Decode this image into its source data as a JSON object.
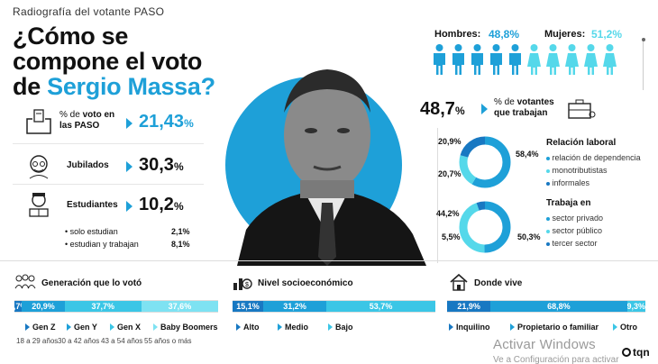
{
  "header": {
    "kicker": "Radiografía del votante PASO",
    "title_line1": "¿Cómo se",
    "title_line2": "compone el voto",
    "title_line3_prefix": "de ",
    "title_line3_name": "Sergio Massa?"
  },
  "left_stats": {
    "voto": {
      "label_prefix": "% de ",
      "label_bold": "voto",
      "label_suffix": " en",
      "label_line2": "las PASO",
      "value_int": "21,43",
      "value_unit": "%"
    },
    "jubilados": {
      "label": "Jubilados",
      "value_int": "30,3",
      "value_unit": "%"
    },
    "estudiantes": {
      "label": "Estudiantes",
      "value_int": "10,2",
      "value_unit": "%",
      "sub": [
        {
          "label": "solo estudian",
          "value": "2,1%"
        },
        {
          "label": "estudian y trabajan",
          "value": "8,1%"
        }
      ]
    }
  },
  "gender": {
    "hombres_label": "Hombres:",
    "hombres_value": "48,8%",
    "mujeres_label": "Mujeres:",
    "mujeres_value": "51,2%"
  },
  "work": {
    "value_int": "48,7",
    "value_unit": "%",
    "label_prefix": "% de ",
    "label_bold": "votantes",
    "label_line2": "que trabajan",
    "relacion": {
      "title": "Relación laboral",
      "legend": [
        "relación de dependencia",
        "monotributistas",
        "informales"
      ],
      "labels": {
        "left_top": "20,9%",
        "left_bottom": "20,7%",
        "right": "58,4%"
      }
    },
    "trabaja_en": {
      "title": "Trabaja en",
      "legend": [
        "sector privado",
        "sector público",
        "tercer sector"
      ],
      "labels": {
        "left_top": "44,2%",
        "left_bottom": "5,5%",
        "right": "50,3%"
      }
    }
  },
  "bottom": {
    "generacion": {
      "title": "Generación que lo votó",
      "segments": [
        {
          "label": "3,7%",
          "value": 3.7,
          "color": "#1878c2"
        },
        {
          "label": "20,9%",
          "value": 20.9,
          "color": "#1ea0d8"
        },
        {
          "label": "37,7%",
          "value": 37.7,
          "color": "#3bc6e6"
        },
        {
          "label": "37,6%",
          "value": 37.6,
          "color": "#7ee2f2"
        }
      ],
      "legend": [
        {
          "name": "Gen Z",
          "sub": "18 a 29 años",
          "color": "#1878c2"
        },
        {
          "name": "Gen Y",
          "sub": "30 a 42 años",
          "color": "#1ea0d8"
        },
        {
          "name": "Gen X",
          "sub": "43 a 54 años",
          "color": "#3bc6e6"
        },
        {
          "name": "Baby Boomers",
          "sub": "55 años o más",
          "color": "#7ee2f2"
        }
      ]
    },
    "nivel": {
      "title": "Nivel socioeconómico",
      "segments": [
        {
          "label": "15,1%",
          "value": 15.1,
          "color": "#1878c2"
        },
        {
          "label": "31,2%",
          "value": 31.2,
          "color": "#1ea0d8"
        },
        {
          "label": "53,7%",
          "value": 53.7,
          "color": "#3bc6e6"
        }
      ],
      "legend": [
        {
          "name": "Alto",
          "color": "#1878c2"
        },
        {
          "name": "Medio",
          "color": "#1ea0d8"
        },
        {
          "name": "Bajo",
          "color": "#3bc6e6"
        }
      ]
    },
    "vive": {
      "title": "Donde vive",
      "segments": [
        {
          "label": "21,9%",
          "value": 21.9,
          "color": "#1878c2"
        },
        {
          "label": "68,8%",
          "value": 68.8,
          "color": "#1ea0d8"
        },
        {
          "label": "9,3%",
          "value": 9.3,
          "color": "#3bc6e6"
        }
      ],
      "legend": [
        {
          "name": "Inquilino",
          "color": "#1878c2"
        },
        {
          "name": "Propietario o familiar",
          "color": "#1ea0d8"
        },
        {
          "name": "Otro",
          "color": "#3bc6e6"
        }
      ]
    }
  },
  "watermark": {
    "line1": "Activar Windows",
    "line2": "Ve a Configuración para activar"
  },
  "brand": "tqn",
  "chart_data": [
    {
      "type": "pie",
      "title": "Relación laboral",
      "categories": [
        "relación de dependencia",
        "monotributistas",
        "informales"
      ],
      "values": [
        58.4,
        20.9,
        20.7
      ]
    },
    {
      "type": "pie",
      "title": "Trabaja en",
      "categories": [
        "sector privado",
        "sector público",
        "tercer sector"
      ],
      "values": [
        50.3,
        44.2,
        5.5
      ]
    },
    {
      "type": "bar",
      "title": "Generación que lo votó",
      "categories": [
        "Gen Z",
        "Gen Y",
        "Gen X",
        "Baby Boomers"
      ],
      "values": [
        3.7,
        20.9,
        37.7,
        37.6
      ]
    },
    {
      "type": "bar",
      "title": "Nivel socioeconómico",
      "categories": [
        "Alto",
        "Medio",
        "Bajo"
      ],
      "values": [
        15.1,
        31.2,
        53.7
      ]
    },
    {
      "type": "bar",
      "title": "Donde vive",
      "categories": [
        "Inquilino",
        "Propietario o familiar",
        "Otro"
      ],
      "values": [
        21.9,
        68.8,
        9.3
      ]
    },
    {
      "type": "bar",
      "title": "Género",
      "categories": [
        "Hombres",
        "Mujeres"
      ],
      "values": [
        48.8,
        51.2
      ]
    }
  ]
}
